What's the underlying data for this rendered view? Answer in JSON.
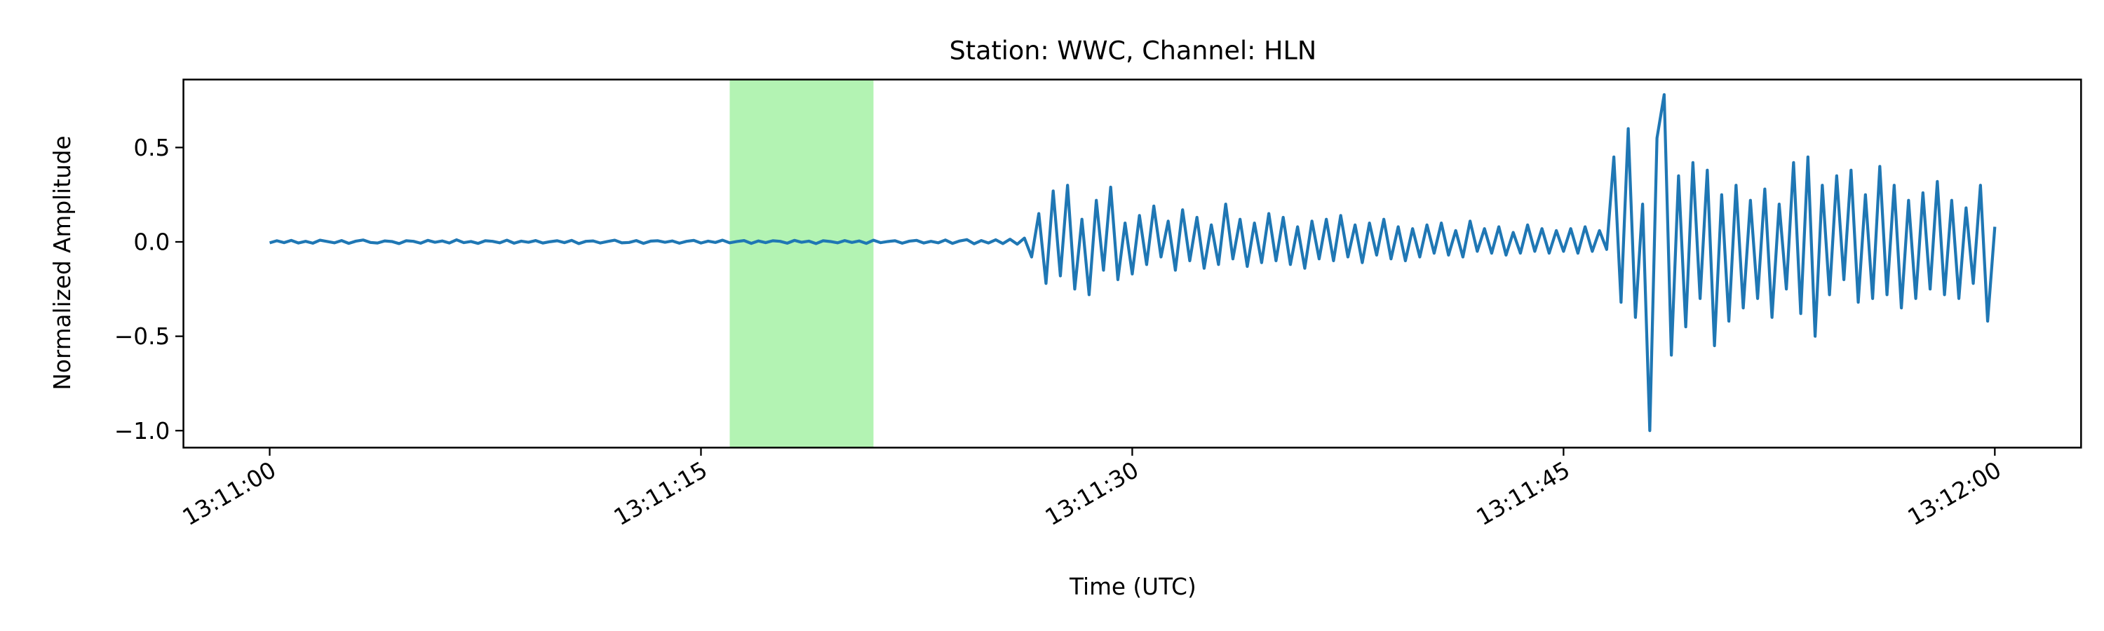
{
  "chart_data": {
    "type": "line",
    "title": "Station: WWC, Channel: HLN",
    "x_label": "Time (UTC)",
    "y_label": "Normalized Amplitude",
    "color": "#1f77b4",
    "highlight_span": [
      16,
      21
    ],
    "highlight_color": "#b3f3b3",
    "xlim": [
      -3,
      63
    ],
    "ylim": [
      -1.09,
      0.86
    ],
    "xticks": [
      {
        "value": 0,
        "label": "13:11:00"
      },
      {
        "value": 15,
        "label": "13:11:15"
      },
      {
        "value": 30,
        "label": "13:11:30"
      },
      {
        "value": 45,
        "label": "13:11:45"
      },
      {
        "value": 60,
        "label": "13:12:00"
      }
    ],
    "yticks": [
      {
        "value": -1,
        "label": "−1.0"
      },
      {
        "value": -0.5,
        "label": "−0.5"
      },
      {
        "value": 0,
        "label": "0.0"
      },
      {
        "value": 0.5,
        "label": "0.5"
      }
    ],
    "x": [
      0,
      0.25,
      0.5,
      0.75,
      1,
      1.25,
      1.5,
      1.75,
      2,
      2.25,
      2.5,
      2.75,
      3,
      3.25,
      3.5,
      3.75,
      4,
      4.25,
      4.5,
      4.75,
      5,
      5.25,
      5.5,
      5.75,
      6,
      6.25,
      6.5,
      6.75,
      7,
      7.25,
      7.5,
      7.75,
      8,
      8.25,
      8.5,
      8.75,
      9,
      9.25,
      9.5,
      9.75,
      10,
      10.25,
      10.5,
      10.75,
      11,
      11.25,
      11.5,
      11.75,
      12,
      12.25,
      12.5,
      12.75,
      13,
      13.25,
      13.5,
      13.75,
      14,
      14.25,
      14.5,
      14.75,
      15,
      15.25,
      15.5,
      15.75,
      16,
      16.25,
      16.5,
      16.75,
      17,
      17.25,
      17.5,
      17.75,
      18,
      18.25,
      18.5,
      18.75,
      19,
      19.25,
      19.5,
      19.75,
      20,
      20.25,
      20.5,
      20.75,
      21,
      21.25,
      21.5,
      21.75,
      22,
      22.25,
      22.5,
      22.75,
      23,
      23.25,
      23.5,
      23.75,
      24,
      24.25,
      24.5,
      24.75,
      25,
      25.25,
      25.5,
      25.75,
      26,
      26.25,
      26.5,
      26.75,
      27,
      27.25,
      27.5,
      27.75,
      28,
      28.25,
      28.5,
      28.75,
      29,
      29.25,
      29.5,
      29.75,
      30,
      30.25,
      30.5,
      30.75,
      31,
      31.25,
      31.5,
      31.75,
      32,
      32.25,
      32.5,
      32.75,
      33,
      33.25,
      33.5,
      33.75,
      34,
      34.25,
      34.5,
      34.75,
      35,
      35.25,
      35.5,
      35.75,
      36,
      36.25,
      36.5,
      36.75,
      37,
      37.25,
      37.5,
      37.75,
      38,
      38.25,
      38.5,
      38.75,
      39,
      39.25,
      39.5,
      39.75,
      40,
      40.25,
      40.5,
      40.75,
      41,
      41.25,
      41.5,
      41.75,
      42,
      42.25,
      42.5,
      42.75,
      43,
      43.25,
      43.5,
      43.75,
      44,
      44.25,
      44.5,
      44.75,
      45,
      45.25,
      45.5,
      45.75,
      46,
      46.25,
      46.5,
      46.75,
      47,
      47.25,
      47.5,
      47.75,
      48,
      48.25,
      48.5,
      48.75,
      49,
      49.25,
      49.5,
      49.75,
      50,
      50.25,
      50.5,
      50.75,
      51,
      51.25,
      51.5,
      51.75,
      52,
      52.25,
      52.5,
      52.75,
      53,
      53.25,
      53.5,
      53.75,
      54,
      54.25,
      54.5,
      54.75,
      55,
      55.25,
      55.5,
      55.75,
      56,
      56.25,
      56.5,
      56.75,
      57,
      57.25,
      57.5,
      57.75,
      58,
      58.25,
      58.5,
      58.75,
      59,
      59.25,
      59.5,
      59.75,
      60
    ],
    "values": [
      -0.005,
      0.006,
      -0.004,
      0.008,
      -0.006,
      0.003,
      -0.007,
      0.009,
      0.002,
      -0.005,
      0.007,
      -0.008,
      0.004,
      0.01,
      -0.003,
      -0.006,
      0.005,
      0.002,
      -0.009,
      0.006,
      0.003,
      -0.007,
      0.008,
      -0.002,
      0.005,
      -0.006,
      0.011,
      -0.004,
      0.002,
      -0.008,
      0.006,
      0.003,
      -0.005,
      0.009,
      -0.007,
      0.004,
      -0.002,
      0.007,
      -0.006,
      0.001,
      0.006,
      -0.004,
      0.008,
      -0.009,
      0.003,
      0.005,
      -0.006,
      0.002,
      0.009,
      -0.005,
      -0.003,
      0.007,
      -0.008,
      0.004,
      0.006,
      -0.002,
      0.005,
      -0.007,
      0.003,
      0.008,
      -0.006,
      0.004,
      -0.003,
      0.009,
      -0.005,
      0.002,
      0.007,
      -0.008,
      0.005,
      -0.004,
      0.006,
      0.003,
      -0.007,
      0.008,
      -0.002,
      0.004,
      -0.009,
      0.006,
      0.002,
      -0.005,
      0.007,
      -0.003,
      0.005,
      -0.008,
      0.009,
      -0.004,
      0.002,
      0.006,
      -0.007,
      0.004,
      0.008,
      -0.006,
      0.003,
      -0.005,
      0.01,
      -0.008,
      0.005,
      0.012,
      -0.01,
      0.007,
      -0.006,
      0.011,
      -0.009,
      0.014,
      -0.012,
      0.02,
      -0.08,
      0.15,
      -0.22,
      0.27,
      -0.18,
      0.3,
      -0.25,
      0.12,
      -0.28,
      0.22,
      -0.15,
      0.29,
      -0.2,
      0.1,
      -0.17,
      0.14,
      -0.12,
      0.19,
      -0.08,
      0.11,
      -0.15,
      0.17,
      -0.1,
      0.13,
      -0.14,
      0.09,
      -0.12,
      0.2,
      -0.09,
      0.12,
      -0.13,
      0.1,
      -0.11,
      0.15,
      -0.1,
      0.13,
      -0.12,
      0.08,
      -0.14,
      0.11,
      -0.09,
      0.12,
      -0.1,
      0.14,
      -0.08,
      0.09,
      -0.11,
      0.1,
      -0.07,
      0.12,
      -0.09,
      0.08,
      -0.1,
      0.07,
      -0.08,
      0.09,
      -0.06,
      0.1,
      -0.07,
      0.06,
      -0.08,
      0.11,
      -0.05,
      0.07,
      -0.06,
      0.08,
      -0.07,
      0.05,
      -0.06,
      0.09,
      -0.05,
      0.07,
      -0.06,
      0.06,
      -0.05,
      0.07,
      -0.06,
      0.08,
      -0.05,
      0.06,
      -0.04,
      0.45,
      -0.32,
      0.6,
      -0.4,
      0.2,
      -1.0,
      0.55,
      0.78,
      -0.6,
      0.35,
      -0.45,
      0.42,
      -0.3,
      0.38,
      -0.55,
      0.25,
      -0.42,
      0.3,
      -0.35,
      0.22,
      -0.3,
      0.28,
      -0.4,
      0.2,
      -0.25,
      0.42,
      -0.38,
      0.45,
      -0.5,
      0.3,
      -0.28,
      0.35,
      -0.2,
      0.38,
      -0.32,
      0.25,
      -0.3,
      0.4,
      -0.28,
      0.3,
      -0.35,
      0.22,
      -0.3,
      0.26,
      -0.25,
      0.32,
      -0.28,
      0.22,
      -0.3,
      0.18,
      -0.22,
      0.3,
      -0.42,
      0.08
    ]
  }
}
